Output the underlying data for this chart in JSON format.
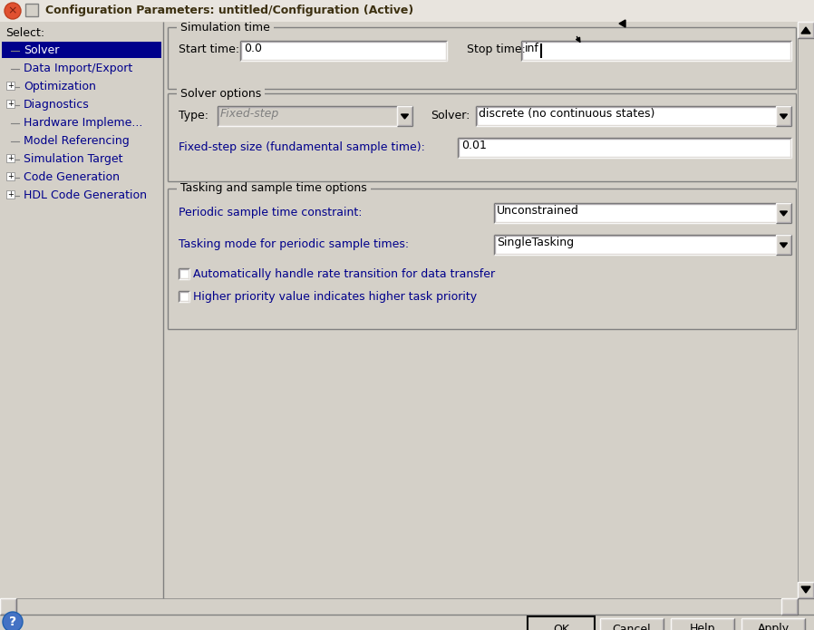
{
  "title": "Configuration Parameters: untitled/Configuration (Active)",
  "window_bg": "#d4d0c8",
  "sim_time_label": "Simulation time",
  "start_time_label": "Start time:",
  "start_time_value": "0.0",
  "stop_time_label": "Stop time:",
  "stop_time_value": "inf",
  "solver_options_label": "Solver options",
  "type_label": "Type:",
  "type_value": "Fixed-step",
  "solver_label": "Solver:",
  "solver_value": "discrete (no continuous states)",
  "fixed_step_label": "Fixed-step size (fundamental sample time):",
  "fixed_step_value": "0.01",
  "tasking_label": "Tasking and sample time options",
  "periodic_label": "Periodic sample time constraint:",
  "periodic_value": "Unconstrained",
  "tasking_mode_label": "Tasking mode for periodic sample times:",
  "tasking_mode_value": "SingleTasking",
  "check1": "Automatically handle rate transition for data transfer",
  "check2": "Higher priority value indicates higher task priority",
  "select_label": "Select:",
  "sidebar_items": [
    {
      "text": "Solver",
      "selected": true,
      "blue": true,
      "has_tree": false
    },
    {
      "text": "Data Import/Export",
      "selected": false,
      "blue": true,
      "has_tree": false
    },
    {
      "text": "Optimization",
      "selected": false,
      "blue": true,
      "has_tree": true
    },
    {
      "text": "Diagnostics",
      "selected": false,
      "blue": true,
      "has_tree": true
    },
    {
      "text": "Hardware Impleme...",
      "selected": false,
      "blue": true,
      "has_tree": false
    },
    {
      "text": "Model Referencing",
      "selected": false,
      "blue": true,
      "has_tree": false
    },
    {
      "text": "Simulation Target",
      "selected": false,
      "blue": true,
      "has_tree": true
    },
    {
      "text": "Code Generation",
      "selected": false,
      "blue": true,
      "has_tree": true
    },
    {
      "text": "HDL Code Generation",
      "selected": false,
      "blue": true,
      "has_tree": true
    }
  ],
  "buttons": [
    "OK",
    "Cancel",
    "Help",
    "Apply"
  ],
  "field_bg": "#ffffff",
  "blue_text": "#00008b",
  "selected_bg": "#00008b",
  "selected_fg": "#ffffff"
}
